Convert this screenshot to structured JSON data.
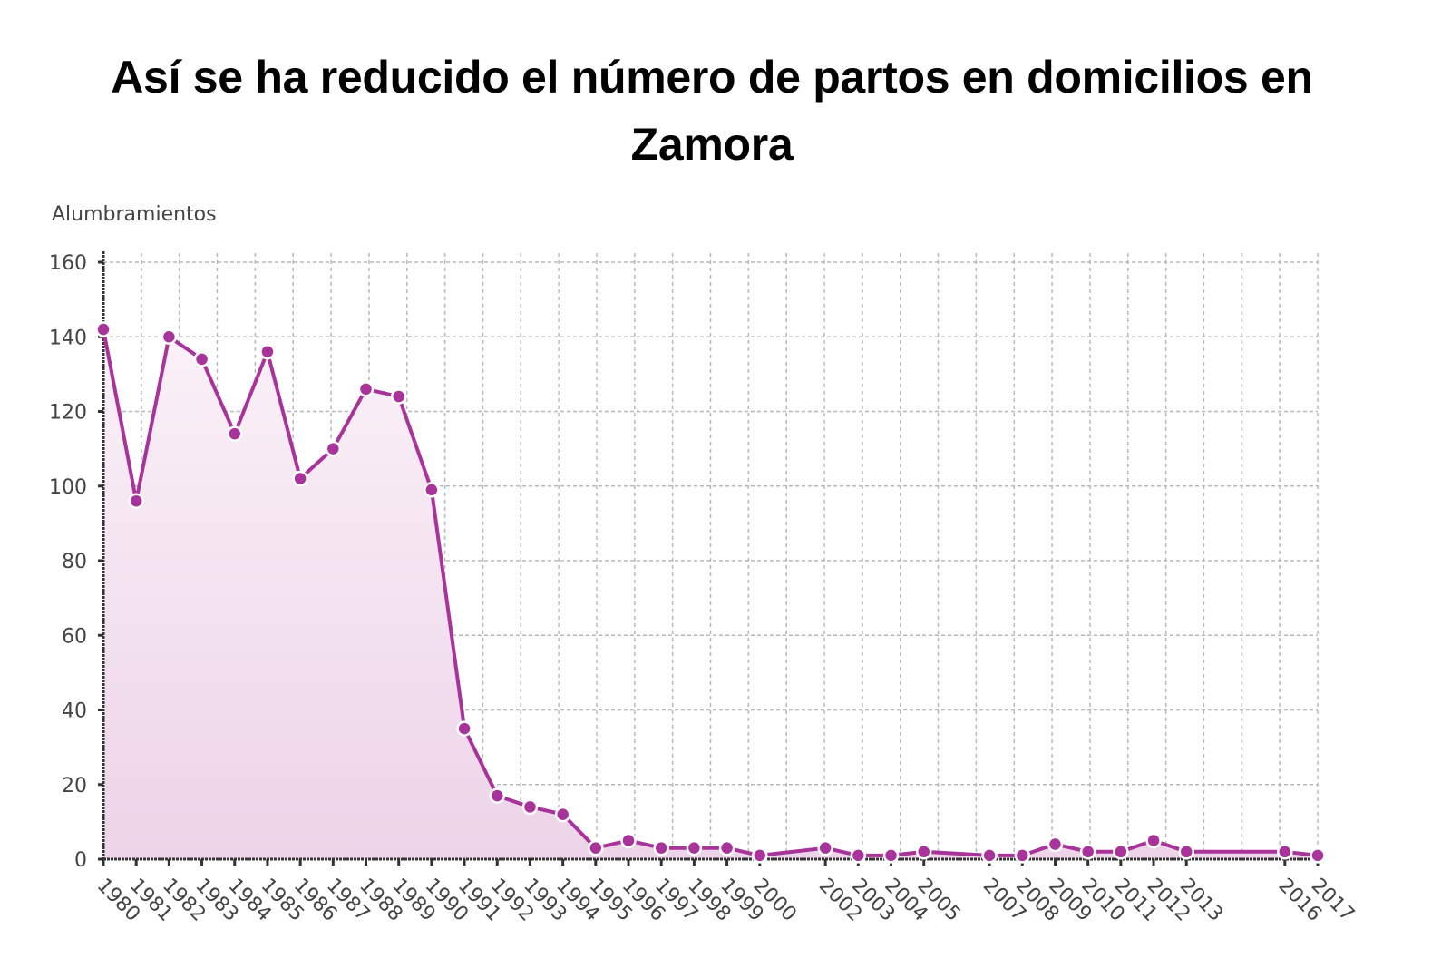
{
  "title": "Así se ha reducido el número de partos en domicilios en Zamora",
  "y_axis_label": "Alumbramientos",
  "colors": {
    "line": "#a8339a",
    "marker": "#a8339a",
    "marker_stroke": "#ffffff",
    "fill_top": "#faf1f8",
    "fill_bottom": "#edd4e8",
    "grid": "#b8b8b8",
    "axis": "#333333",
    "text": "#444444"
  },
  "chart_data": {
    "type": "area",
    "title": "Así se ha reducido el número de partos en domicilios en Zamora",
    "xlabel": "",
    "ylabel": "Alumbramientos",
    "x": [
      1980,
      1981,
      1982,
      1983,
      1984,
      1985,
      1986,
      1987,
      1988,
      1989,
      1990,
      1991,
      1992,
      1993,
      1994,
      1995,
      1996,
      1997,
      1998,
      1999,
      2000,
      2002,
      2003,
      2004,
      2005,
      2007,
      2008,
      2009,
      2010,
      2011,
      2012,
      2013,
      2016,
      2017
    ],
    "series": [
      {
        "name": "Alumbramientos",
        "values": [
          142,
          96,
          140,
          134,
          114,
          136,
          102,
          110,
          126,
          124,
          99,
          35,
          17,
          14,
          12,
          3,
          5,
          3,
          3,
          3,
          1,
          3,
          1,
          1,
          2,
          1,
          1,
          4,
          2,
          2,
          5,
          2,
          2,
          1
        ]
      }
    ],
    "x_tick_labels": [
      "1980",
      "1981",
      "1982",
      "1983",
      "1984",
      "1985",
      "1986",
      "1987",
      "1988",
      "1989",
      "1990",
      "1991",
      "1992",
      "1993",
      "1994",
      "1995",
      "1996",
      "1997",
      "1998",
      "1999",
      "2000",
      "2002",
      "2003",
      "2004",
      "2005",
      "2007",
      "2008",
      "2009",
      "2010",
      "2011",
      "2012",
      "2013",
      "2016",
      "2017"
    ],
    "y_ticks": [
      0,
      20,
      40,
      60,
      80,
      100,
      120,
      140,
      160
    ],
    "ylim": [
      0,
      160
    ],
    "xlim": [
      1980,
      2017
    ],
    "grid": true,
    "legend": "none",
    "markers": true
  }
}
